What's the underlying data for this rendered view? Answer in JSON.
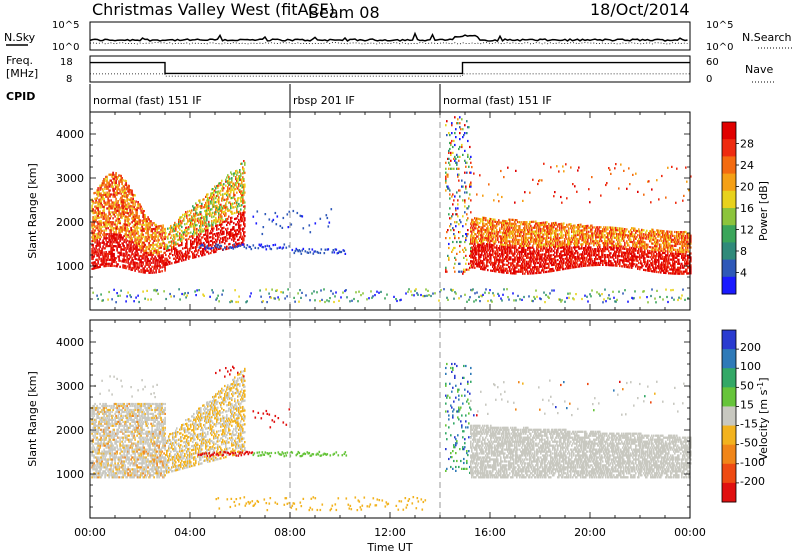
{
  "header": {
    "title": "Christmas Valley West (fitACF)",
    "beam": "Beam 08",
    "date": "18/Oct/2014"
  },
  "top_panels": {
    "nsky_label": "N.Sky",
    "nsky_ticks": [
      "10^5",
      "10^0"
    ],
    "nsearch_label": "N.Search",
    "nsearch_ticks": [
      "10^5",
      "10^0"
    ],
    "freq_label_1": "Freq.",
    "freq_label_2": "[MHz]",
    "freq_ticks": [
      "18",
      "8"
    ],
    "nave_label": "Nave",
    "nave_ticks": [
      "60",
      "0"
    ],
    "cpid_label": "CPID",
    "modes": [
      {
        "label": "normal (fast) 151 IF",
        "start_hour": 0,
        "end_hour": 8
      },
      {
        "label": "rbsp 201 IF",
        "start_hour": 8,
        "end_hour": 14
      },
      {
        "label": "normal (fast) 151 IF",
        "start_hour": 14,
        "end_hour": 24
      }
    ]
  },
  "chart_data": [
    {
      "type": "heatmap",
      "name": "power",
      "ylabel": "Slant Range [km]",
      "xlabel": "Time UT",
      "ylim": [
        0,
        4500
      ],
      "xlim_hours": [
        0,
        24
      ],
      "y_ticks": [
        1000,
        2000,
        3000,
        4000
      ],
      "x_ticks": [
        "00:00",
        "04:00",
        "08:00",
        "12:00",
        "16:00",
        "20:00",
        "00:00"
      ],
      "colorbar": {
        "label": "Power [dB]",
        "ticks": [
          "4",
          "8",
          "12",
          "16",
          "20",
          "24",
          "28"
        ],
        "colors": [
          "#1a1aff",
          "#2e58b8",
          "#2f8a7a",
          "#3aa55a",
          "#8cc43c",
          "#e8d21c",
          "#f5a015",
          "#f46b10",
          "#ee2b10",
          "#e00000"
        ]
      }
    },
    {
      "type": "heatmap",
      "name": "velocity",
      "ylabel": "Slant Range [km]",
      "xlabel": "Time UT",
      "ylim": [
        0,
        4500
      ],
      "xlim_hours": [
        0,
        24
      ],
      "y_ticks": [
        1000,
        2000,
        3000,
        4000
      ],
      "x_ticks": [
        "00:00",
        "04:00",
        "08:00",
        "12:00",
        "16:00",
        "20:00",
        "00:00"
      ],
      "colorbar": {
        "label": "Velocity [m s",
        "label_sup": "-1",
        "label_end": "]",
        "ticks": [
          "200",
          "100",
          "50",
          "15",
          "-15",
          "-50",
          "-100",
          "-200"
        ],
        "colors": [
          "#2a3bd0",
          "#2f7ab8",
          "#33a866",
          "#66c43a",
          "#c8c8c0",
          "#f2b21e",
          "#f08518",
          "#ee4a12",
          "#e01010"
        ]
      }
    }
  ],
  "footer": {
    "xlabel": "Time UT"
  }
}
